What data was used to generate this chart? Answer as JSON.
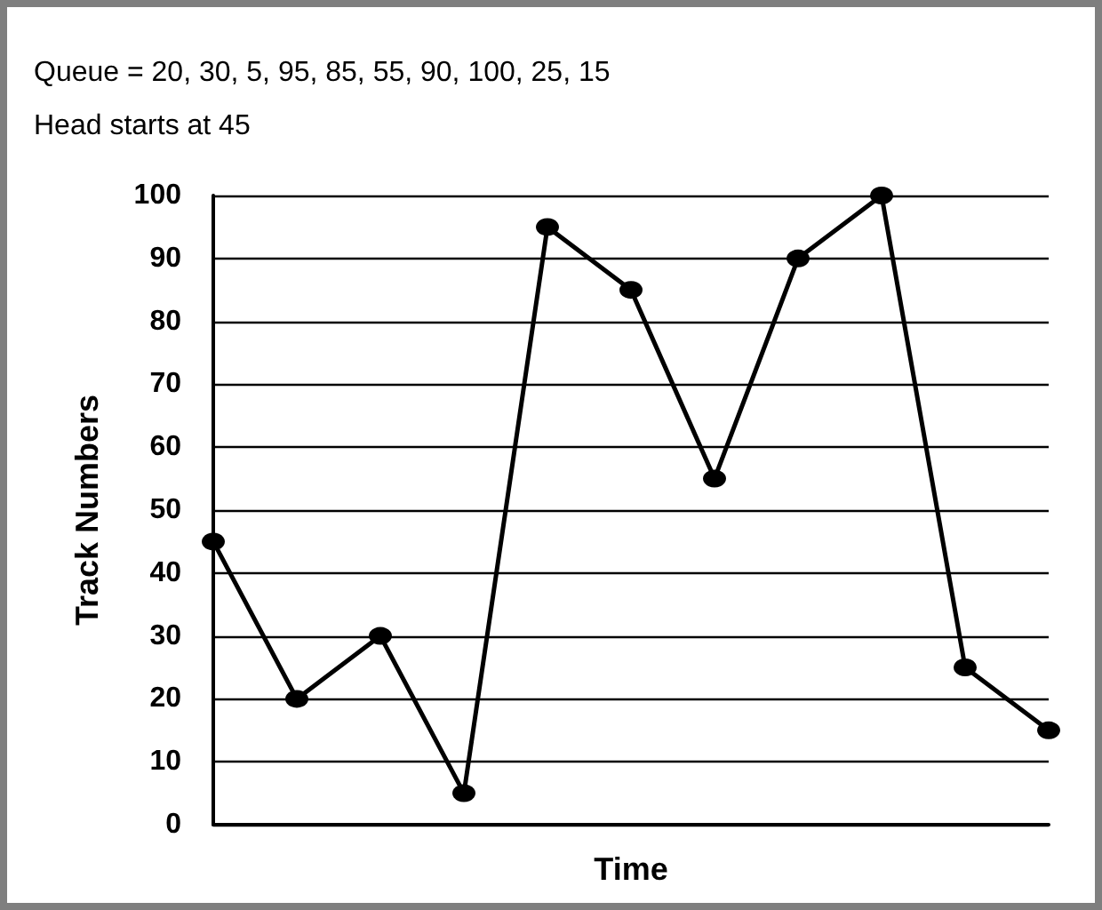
{
  "chart_data": {
    "type": "line",
    "title": "Queue = 20, 30, 5, 95, 85, 55, 90, 100, 25, 15",
    "subtitle": "Head starts at 45",
    "xlabel": "Time",
    "ylabel": "Track Numbers",
    "categories": [
      null,
      null,
      null,
      null,
      null,
      null,
      null,
      null,
      null,
      null,
      null
    ],
    "series": [
      {
        "color": "#000000",
        "values": [
          45,
          20,
          30,
          5,
          95,
          85,
          55,
          90,
          100,
          25,
          15
        ]
      }
    ],
    "ylim": [
      0,
      100
    ],
    "yticks": [
      0,
      10,
      20,
      30,
      40,
      50,
      60,
      70,
      80,
      90,
      100
    ],
    "grid": "y",
    "marker": "circle",
    "line_style": "solid"
  }
}
